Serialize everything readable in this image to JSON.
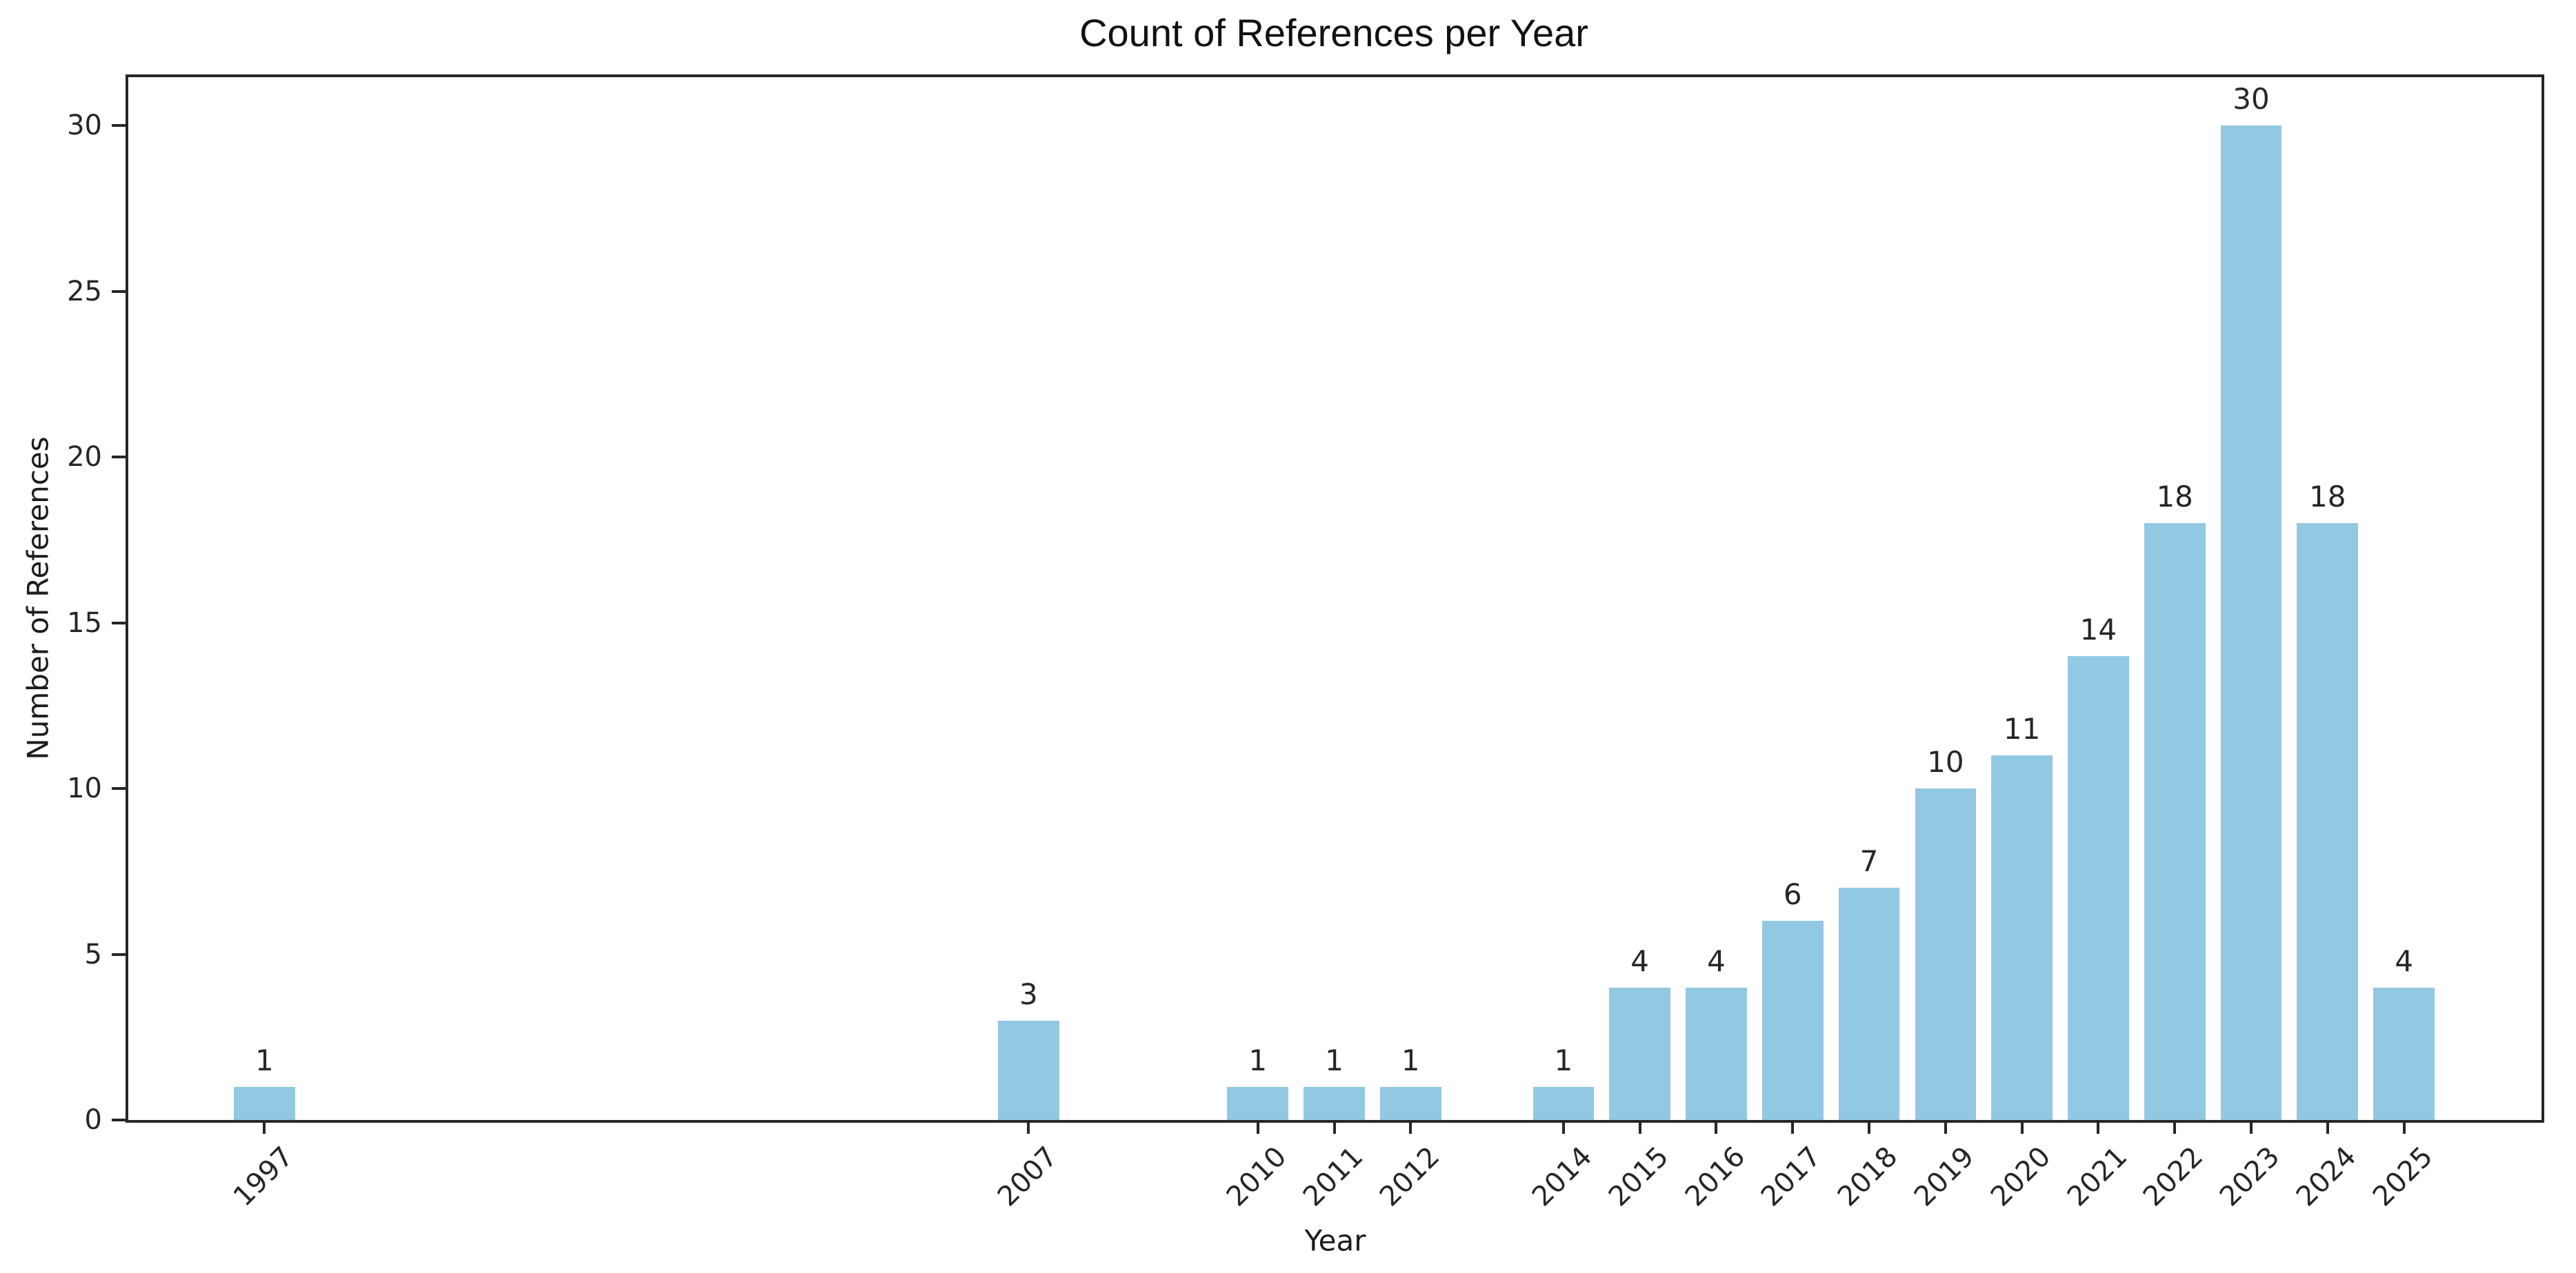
{
  "chart_data": {
    "type": "bar",
    "title": "Count of References per Year",
    "xlabel": "Year",
    "ylabel": "Number of References",
    "categories": [
      1997,
      2007,
      2010,
      2011,
      2012,
      2014,
      2015,
      2016,
      2017,
      2018,
      2019,
      2020,
      2021,
      2022,
      2023,
      2024,
      2025
    ],
    "values": [
      1,
      3,
      1,
      1,
      1,
      1,
      4,
      4,
      6,
      7,
      10,
      11,
      14,
      18,
      30,
      18,
      4
    ],
    "bar_labels": [
      "1",
      "3",
      "1",
      "1",
      "1",
      "1",
      "4",
      "4",
      "6",
      "7",
      "10",
      "11",
      "14",
      "18",
      "30",
      "18",
      "4"
    ],
    "yticks": [
      0,
      5,
      10,
      15,
      20,
      25,
      30
    ],
    "ytick_labels": [
      "0",
      "5",
      "10",
      "15",
      "20",
      "25",
      "30"
    ],
    "xtick_labels": [
      "1997",
      "2007",
      "2010",
      "2011",
      "2012",
      "2014",
      "2015",
      "2016",
      "2017",
      "2018",
      "2019",
      "2020",
      "2021",
      "2022",
      "2023",
      "2024",
      "2025"
    ],
    "xlim": [
      1995.2,
      2026.8
    ],
    "ylim": [
      0,
      31.5
    ],
    "bar_width_years": 0.8,
    "x_tick_rotation_deg": 45,
    "grid": false,
    "legend_position": "none",
    "bar_color": "#92c8e2",
    "axis_color": "#262626",
    "text_color": "#262626",
    "background_color": "#ffffff"
  }
}
